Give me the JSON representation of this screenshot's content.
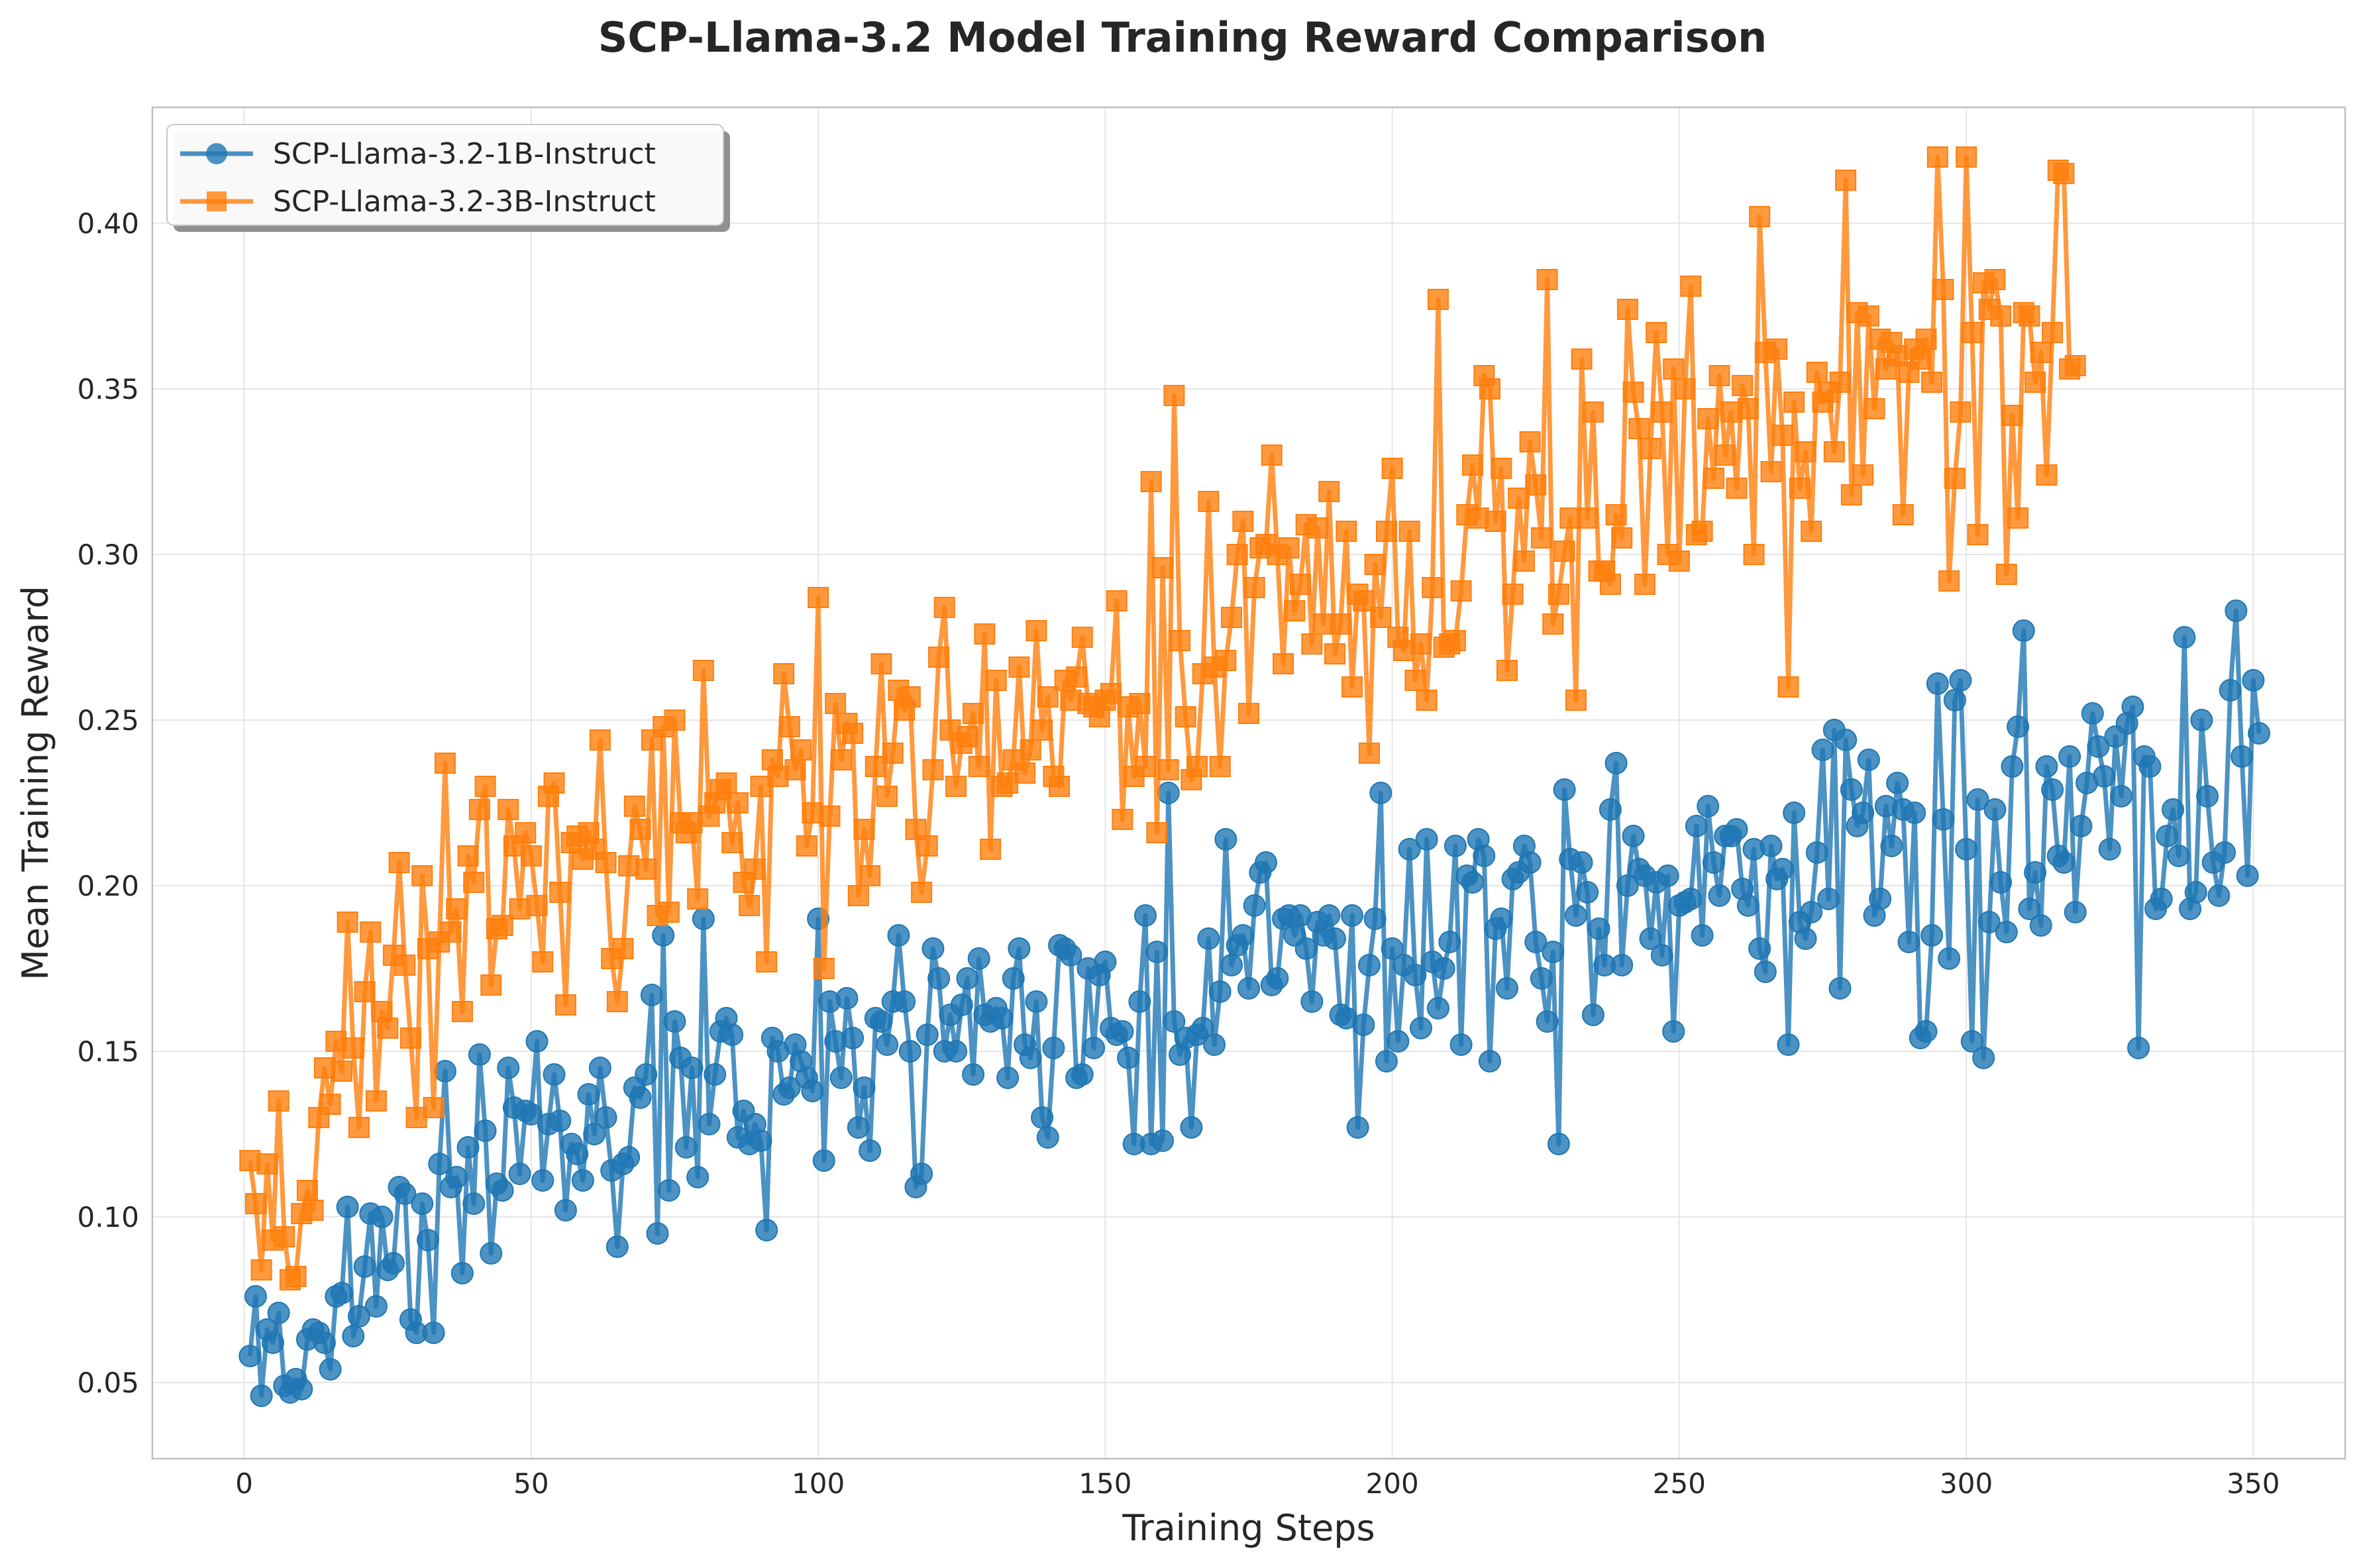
{
  "chart_data": {
    "type": "line",
    "title": "SCP-Llama-3.2 Model Training Reward Comparison",
    "xlabel": "Training Steps",
    "ylabel": "Mean Training Reward",
    "xlim": [
      -16,
      366
    ],
    "ylim": [
      0.027,
      0.435
    ],
    "xticks": [
      0,
      50,
      100,
      150,
      200,
      250,
      300,
      350
    ],
    "yticks": [
      0.05,
      0.1,
      0.15,
      0.2,
      0.25,
      0.3,
      0.35,
      0.4
    ],
    "ytick_labels": [
      "0.05",
      "0.10",
      "0.15",
      "0.20",
      "0.25",
      "0.30",
      "0.35",
      "0.40"
    ],
    "grid": true,
    "legend_position": "top-left",
    "series": [
      {
        "name": "SCP-Llama-3.2-1B-Instruct",
        "color": "#1f77b4",
        "marker": "circle",
        "x_start": 1,
        "x_step": 1,
        "values": [
          0.058,
          0.076,
          0.046,
          0.066,
          0.062,
          0.071,
          0.049,
          0.047,
          0.051,
          0.048,
          0.063,
          0.066,
          0.065,
          0.062,
          0.054,
          0.076,
          0.077,
          0.103,
          0.064,
          0.07,
          0.085,
          0.101,
          0.073,
          0.1,
          0.084,
          0.086,
          0.109,
          0.107,
          0.069,
          0.065,
          0.104,
          0.093,
          0.065,
          0.116,
          0.144,
          0.109,
          0.112,
          0.083,
          0.121,
          0.104,
          0.149,
          0.126,
          0.089,
          0.11,
          0.108,
          0.145,
          0.133,
          0.113,
          0.132,
          0.131,
          0.153,
          0.111,
          0.128,
          0.143,
          0.129,
          0.102,
          0.122,
          0.119,
          0.111,
          0.137,
          0.125,
          0.145,
          0.13,
          0.114,
          0.091,
          0.116,
          0.118,
          0.139,
          0.136,
          0.143,
          0.167,
          0.095,
          0.185,
          0.108,
          0.159,
          0.148,
          0.121,
          0.145,
          0.112,
          0.19,
          0.128,
          0.143,
          0.156,
          0.16,
          0.155,
          0.124,
          0.132,
          0.122,
          0.128,
          0.123,
          0.096,
          0.154,
          0.15,
          0.137,
          0.139,
          0.152,
          0.147,
          0.142,
          0.138,
          0.19,
          0.117,
          0.165,
          0.153,
          0.142,
          0.166,
          0.154,
          0.127,
          0.139,
          0.12,
          0.16,
          0.159,
          0.152,
          0.165,
          0.185,
          0.165,
          0.15,
          0.109,
          0.113,
          0.155,
          0.181,
          0.172,
          0.15,
          0.161,
          0.15,
          0.164,
          0.172,
          0.143,
          0.178,
          0.161,
          0.159,
          0.163,
          0.16,
          0.142,
          0.172,
          0.181,
          0.152,
          0.148,
          0.165,
          0.13,
          0.124,
          0.151,
          0.182,
          0.181,
          0.179,
          0.142,
          0.143,
          0.175,
          0.151,
          0.173,
          0.177,
          0.157,
          0.155,
          0.156,
          0.148,
          0.122,
          0.165,
          0.191,
          0.122,
          0.18,
          0.123,
          0.228,
          0.159,
          0.149,
          0.154,
          0.127,
          0.155,
          0.157,
          0.184,
          0.152,
          0.168,
          0.214,
          0.176,
          0.182,
          0.185,
          0.169,
          0.194,
          0.204,
          0.207,
          0.17,
          0.172,
          0.19,
          0.191,
          0.185,
          0.191,
          0.181,
          0.165,
          0.189,
          0.185,
          0.191,
          0.184,
          0.161,
          0.16,
          0.191,
          0.127,
          0.158,
          0.176,
          0.19,
          0.228,
          0.147,
          0.181,
          0.153,
          0.176,
          0.211,
          0.173,
          0.157,
          0.214,
          0.177,
          0.163,
          0.175,
          0.183,
          0.212,
          0.152,
          0.203,
          0.201,
          0.214,
          0.209,
          0.147,
          0.187,
          0.19,
          0.169,
          0.202,
          0.204,
          0.212,
          0.207,
          0.183,
          0.172,
          0.159,
          0.18,
          0.122,
          0.229,
          0.208,
          0.191,
          0.207,
          0.198,
          0.161,
          0.187,
          0.176,
          0.223,
          0.237,
          0.176,
          0.2,
          0.215,
          0.205,
          0.203,
          0.184,
          0.201,
          0.179,
          0.203,
          0.156,
          0.194,
          0.195,
          0.196,
          0.218,
          0.185,
          0.224,
          0.207,
          0.197,
          0.215,
          0.215,
          0.217,
          0.199,
          0.194,
          0.211,
          0.181,
          0.174,
          0.212,
          0.202,
          0.205,
          0.152,
          0.222,
          0.189,
          0.184,
          0.192,
          0.21,
          0.241,
          0.196,
          0.247,
          0.169,
          0.244,
          0.229,
          0.218,
          0.222,
          0.238,
          0.191,
          0.196,
          0.224,
          0.212,
          0.231,
          0.223,
          0.183,
          0.222,
          0.154,
          0.156,
          0.185,
          0.261,
          0.22,
          0.178,
          0.256,
          0.262,
          0.211,
          0.153,
          0.226,
          0.148,
          0.189,
          0.223,
          0.201,
          0.186,
          0.236,
          0.248,
          0.277,
          0.193,
          0.204,
          0.188,
          0.236,
          0.229,
          0.209,
          0.207,
          0.239,
          0.192,
          0.218,
          0.231,
          0.252,
          0.242,
          0.233,
          0.211,
          0.245,
          0.227,
          0.249,
          0.254,
          0.151,
          0.239,
          0.236,
          0.193,
          0.196,
          0.215,
          0.223,
          0.209,
          0.275,
          0.193,
          0.198,
          0.25,
          0.227,
          0.207,
          0.197,
          0.21,
          0.259,
          0.283,
          0.239,
          0.203,
          0.262,
          0.246
        ]
      },
      {
        "name": "SCP-Llama-3.2-3B-Instruct",
        "color": "#ff7f0e",
        "marker": "square",
        "x_start": 1,
        "x_step": 1,
        "values": [
          0.117,
          0.104,
          0.084,
          0.116,
          0.093,
          0.135,
          0.094,
          0.081,
          0.082,
          0.101,
          0.108,
          0.102,
          0.13,
          0.145,
          0.134,
          0.153,
          0.144,
          0.189,
          0.151,
          0.127,
          0.168,
          0.186,
          0.135,
          0.162,
          0.157,
          0.179,
          0.207,
          0.176,
          0.154,
          0.13,
          0.203,
          0.181,
          0.133,
          0.183,
          0.237,
          0.186,
          0.193,
          0.162,
          0.209,
          0.201,
          0.223,
          0.23,
          0.17,
          0.187,
          0.188,
          0.223,
          0.212,
          0.193,
          0.216,
          0.209,
          0.194,
          0.177,
          0.227,
          0.231,
          0.198,
          0.164,
          0.213,
          0.215,
          0.208,
          0.216,
          0.211,
          0.244,
          0.207,
          0.178,
          0.165,
          0.181,
          0.206,
          0.224,
          0.217,
          0.205,
          0.244,
          0.191,
          0.248,
          0.192,
          0.25,
          0.219,
          0.216,
          0.219,
          0.196,
          0.265,
          0.221,
          0.225,
          0.229,
          0.231,
          0.213,
          0.225,
          0.201,
          0.194,
          0.205,
          0.23,
          0.177,
          0.238,
          0.233,
          0.264,
          0.248,
          0.235,
          0.241,
          0.212,
          0.222,
          0.287,
          0.175,
          0.221,
          0.255,
          0.238,
          0.249,
          0.246,
          0.197,
          0.217,
          0.203,
          0.236,
          0.267,
          0.227,
          0.24,
          0.259,
          0.253,
          0.257,
          0.217,
          0.198,
          0.212,
          0.235,
          0.269,
          0.284,
          0.247,
          0.23,
          0.243,
          0.245,
          0.252,
          0.236,
          0.276,
          0.211,
          0.262,
          0.23,
          0.231,
          0.238,
          0.266,
          0.234,
          0.241,
          0.277,
          0.247,
          0.257,
          0.233,
          0.23,
          0.262,
          0.256,
          0.263,
          0.275,
          0.255,
          0.254,
          0.251,
          0.256,
          0.258,
          0.286,
          0.22,
          0.254,
          0.233,
          0.255,
          0.236,
          0.322,
          0.216,
          0.296,
          0.235,
          0.348,
          0.274,
          0.251,
          0.232,
          0.236,
          0.264,
          0.316,
          0.266,
          0.236,
          0.268,
          0.281,
          0.3,
          0.31,
          0.252,
          0.29,
          0.302,
          0.303,
          0.33,
          0.3,
          0.267,
          0.302,
          0.283,
          0.291,
          0.309,
          0.273,
          0.308,
          0.279,
          0.319,
          0.27,
          0.279,
          0.307,
          0.26,
          0.288,
          0.286,
          0.24,
          0.297,
          0.281,
          0.307,
          0.326,
          0.275,
          0.271,
          0.307,
          0.262,
          0.273,
          0.256,
          0.29,
          0.377,
          0.272,
          0.273,
          0.274,
          0.289,
          0.312,
          0.327,
          0.311,
          0.354,
          0.35,
          0.31,
          0.326,
          0.265,
          0.288,
          0.317,
          0.298,
          0.334,
          0.321,
          0.305,
          0.383,
          0.279,
          0.288,
          0.301,
          0.311,
          0.256,
          0.359,
          0.311,
          0.343,
          0.295,
          0.295,
          0.291,
          0.312,
          0.305,
          0.374,
          0.349,
          0.338,
          0.291,
          0.332,
          0.367,
          0.343,
          0.3,
          0.356,
          0.298,
          0.35,
          0.381,
          0.306,
          0.307,
          0.341,
          0.323,
          0.354,
          0.33,
          0.343,
          0.32,
          0.351,
          0.344,
          0.3,
          0.402,
          0.361,
          0.325,
          0.362,
          0.336,
          0.26,
          0.346,
          0.32,
          0.331,
          0.307,
          0.355,
          0.346,
          0.349,
          0.331,
          0.352,
          0.413,
          0.318,
          0.373,
          0.324,
          0.372,
          0.344,
          0.365,
          0.356,
          0.364,
          0.36,
          0.312,
          0.355,
          0.362,
          0.359,
          0.365,
          0.352,
          0.42,
          0.38,
          0.292,
          0.323,
          0.343,
          0.42,
          0.367,
          0.306,
          0.382,
          0.374,
          0.383,
          0.372,
          0.294,
          0.342,
          0.311,
          0.373,
          0.372,
          0.352,
          0.361,
          0.324,
          0.367,
          0.416,
          0.415,
          0.356,
          0.357
        ]
      }
    ]
  }
}
